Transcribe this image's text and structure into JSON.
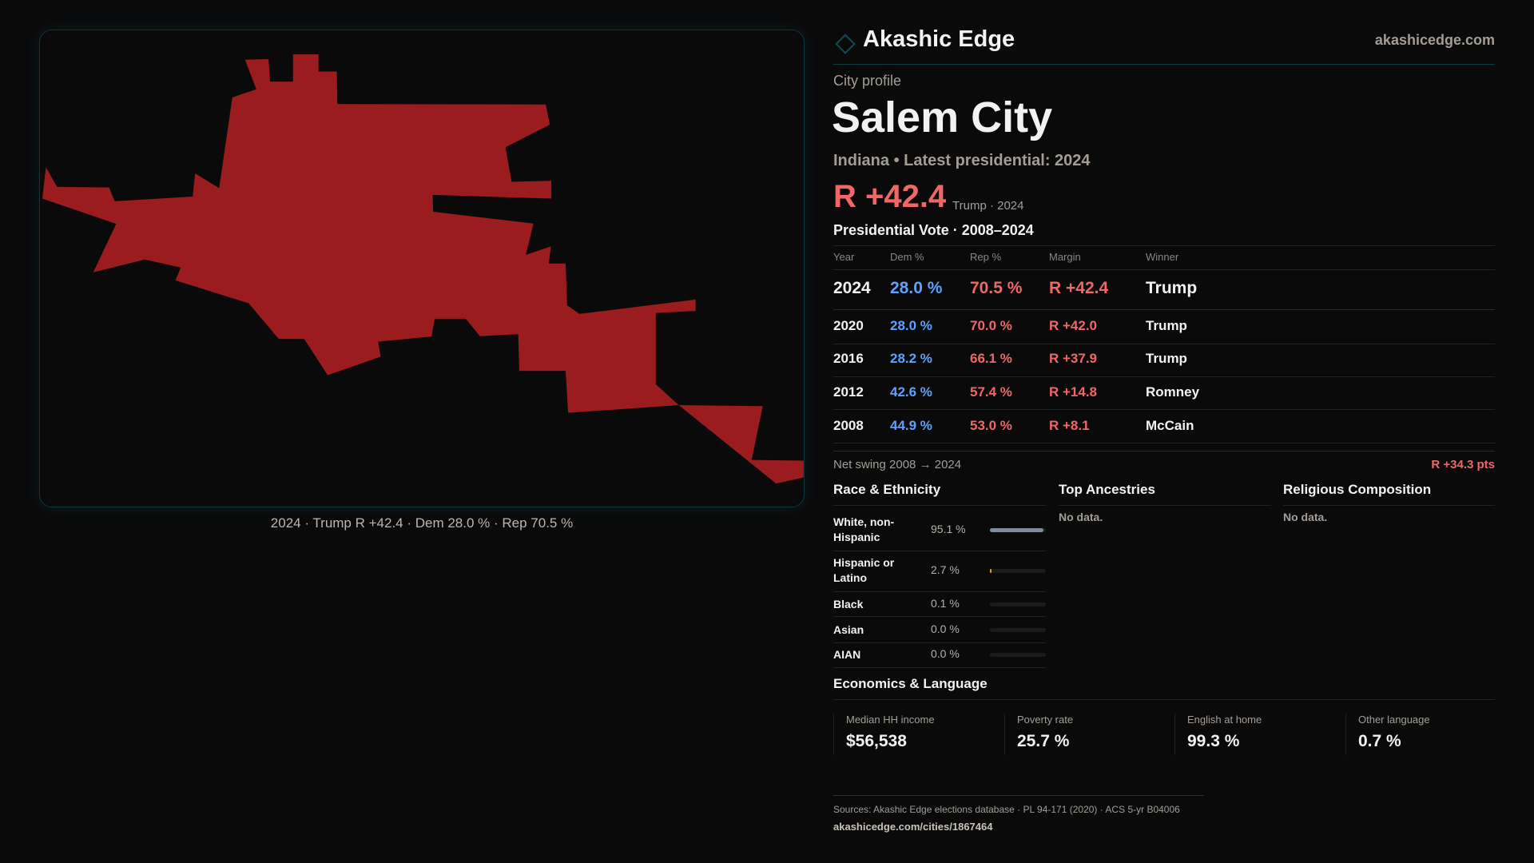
{
  "map": {
    "fill_color": "#9b1c1f",
    "caption": "2024 · Trump R +42.4 · Dem 28.0 % · Rep 70.5 %"
  },
  "header": {
    "brand": "Akashic Edge",
    "site": "akashicedge.com",
    "logo_icon": "diamond-icon"
  },
  "profile": {
    "kicker": "City profile",
    "name": "Salem City",
    "subtitle": "Indiana • Latest presidential: 2024",
    "margin": "R +42.4",
    "margin_note": "Trump · 2024"
  },
  "votes": {
    "title": "Presidential Vote · 2008–2024",
    "columns": [
      "Year",
      "Dem %",
      "Rep %",
      "Margin",
      "Winner"
    ],
    "rows": [
      {
        "year": "2024",
        "dem": "28.0 %",
        "rep": "70.5 %",
        "margin": "R +42.4",
        "winner": "Trump"
      },
      {
        "year": "2020",
        "dem": "28.0 %",
        "rep": "70.0 %",
        "margin": "R +42.0",
        "winner": "Trump"
      },
      {
        "year": "2016",
        "dem": "28.2 %",
        "rep": "66.1 %",
        "margin": "R +37.9",
        "winner": "Trump"
      },
      {
        "year": "2012",
        "dem": "42.6 %",
        "rep": "57.4 %",
        "margin": "R +14.8",
        "winner": "Romney"
      },
      {
        "year": "2008",
        "dem": "44.9 %",
        "rep": "53.0 %",
        "margin": "R +8.1",
        "winner": "McCain"
      }
    ],
    "swing_label": "Net swing 2008 → 2024",
    "swing_value": "R +34.3 pts"
  },
  "race": {
    "title": "Race & Ethnicity",
    "items": [
      {
        "label": "White, non-Hispanic",
        "value": "95.1 %",
        "pct": 95.1,
        "color": "#7f8ba0"
      },
      {
        "label": "Hispanic or Latino",
        "value": "2.7 %",
        "pct": 2.7,
        "color": "#e0a020"
      },
      {
        "label": "Black",
        "value": "0.1 %",
        "pct": 0.1,
        "color": "#7f8ba0"
      },
      {
        "label": "Asian",
        "value": "0.0 %",
        "pct": 0,
        "color": "#7f8ba0"
      },
      {
        "label": "AIAN",
        "value": "0.0 %",
        "pct": 0,
        "color": "#7f8ba0"
      }
    ]
  },
  "ancestries": {
    "title": "Top Ancestries",
    "empty": "No data."
  },
  "religion": {
    "title": "Religious Composition",
    "empty": "No data."
  },
  "economics": {
    "title": "Economics & Language",
    "cards": [
      {
        "label": "Median HH income",
        "value": "$56,538"
      },
      {
        "label": "Poverty rate",
        "value": "25.7 %"
      },
      {
        "label": "English at home",
        "value": "99.3 %"
      },
      {
        "label": "Other language",
        "value": "0.7 %"
      }
    ]
  },
  "footer": {
    "sources": "Sources: Akashic Edge elections database · PL 94-171 (2020) · ACS 5-yr B04006",
    "url": "akashicedge.com/cities/1867464"
  },
  "colors": {
    "dem": "#5ea2ff",
    "rep": "#f06767",
    "accent": "#0f4a52",
    "background": "#0a0a0b"
  }
}
